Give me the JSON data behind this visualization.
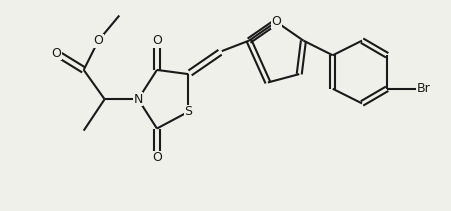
{
  "bg": "#f0f0eb",
  "lc": "#1a1a1a",
  "lw": 1.5,
  "fs": 9,
  "xlim": [
    -0.3,
    10.5
  ],
  "ylim": [
    -0.5,
    4.5
  ]
}
